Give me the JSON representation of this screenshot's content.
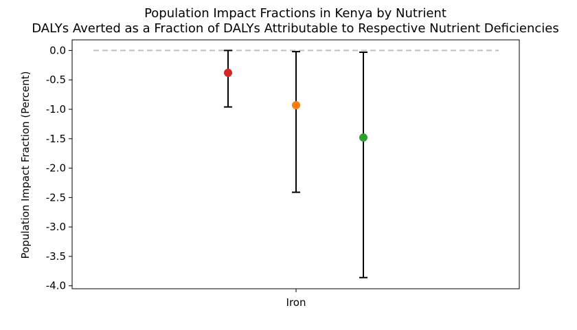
{
  "chart_data": {
    "type": "scatter",
    "title": "Population Impact Fractions in Kenya by Nutrient",
    "subtitle": "DALYs Averted as a Fraction of DALYs Attributable to Respective Nutrient Deficiencies",
    "xlabel": "",
    "ylabel": "Population Impact Fraction (Percent)",
    "categories": [
      "Iron"
    ],
    "ylim": [
      -4.05,
      0.18
    ],
    "yticks": [
      "0.0",
      "-0.5",
      "-1.0",
      "-1.5",
      "-2.0",
      "-2.5",
      "-3.0",
      "-3.5",
      "-4.0"
    ],
    "reference_line": {
      "y": 0.0,
      "style": "dashed",
      "color": "#bfbfbf"
    },
    "grid": false,
    "legend": "none",
    "series": [
      {
        "category": "Iron",
        "value": -0.38,
        "lower": -0.96,
        "upper": 0.0,
        "color": "#d62728"
      },
      {
        "category": "Iron",
        "value": -0.93,
        "lower": -2.41,
        "upper": -0.02,
        "color": "#ff7f0e"
      },
      {
        "category": "Iron",
        "value": -1.48,
        "lower": -3.86,
        "upper": -0.03,
        "color": "#2ca02c"
      }
    ]
  }
}
